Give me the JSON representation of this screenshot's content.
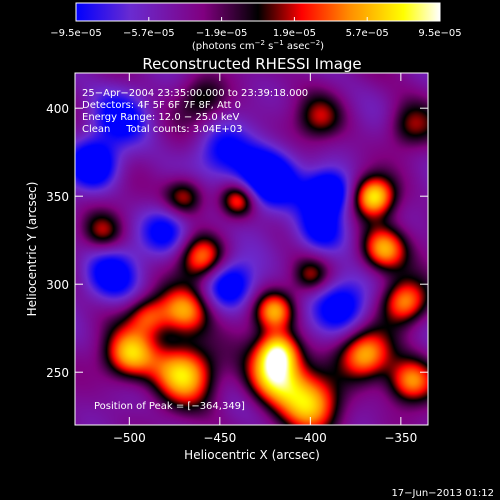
{
  "chart_data": {
    "type": "heatmap",
    "title": "Reconstructed RHESSI Image",
    "xlabel": "Heliocentric X (arcsec)",
    "ylabel": "Heliocentric Y (arcsec)",
    "xlim": [
      -530,
      -335
    ],
    "ylim": [
      220,
      420
    ],
    "x_ticks": [
      -500,
      -450,
      -400,
      -350
    ],
    "x_tick_labels": [
      "−500",
      "−450",
      "−400",
      "−350"
    ],
    "y_ticks": [
      250,
      300,
      350,
      400
    ],
    "y_tick_labels": [
      "250",
      "300",
      "350",
      "400"
    ],
    "colorbar": {
      "range": [
        -9.5e-05,
        9.5e-05
      ],
      "tick_values": [
        -9.5e-05,
        -5.7e-05,
        -1.9e-05,
        1.9e-05,
        5.7e-05,
        9.5e-05
      ],
      "tick_labels": [
        "−9.5e−05",
        "−5.7e−05",
        "−1.9e−05",
        "1.9e−05",
        "5.7e−05",
        "9.5e−05"
      ],
      "unit_main": "(photons cm",
      "unit_sup1": "−2",
      "unit_mid": " s",
      "unit_sup2": "−1",
      "unit_mid2": " asec",
      "unit_sup3": "−2",
      "unit_end": ")",
      "colors": [
        "#0000ff",
        "#6a2bd0",
        "#800080",
        "#000000",
        "#ff0000",
        "#ff8c00",
        "#ffff00",
        "#ffffff"
      ]
    },
    "annotations": [
      "25−Apr−2004 23:35:00.000 to 23:39:18.000",
      "Detectors: 4F 5F 6F 7F 8F, Att 0",
      "Energy Range: 12.0 − 25.0 keV",
      "Clean     Total counts: 3.04E+03"
    ],
    "peak_label": "Position of Peak = [−364,349]",
    "peak": [
      -364,
      349
    ],
    "blobs": [
      {
        "x": -425,
        "y": 360,
        "v": -1.0,
        "s": 12
      },
      {
        "x": -520,
        "y": 368,
        "v": -0.8,
        "s": 10
      },
      {
        "x": -390,
        "y": 352,
        "v": -0.9,
        "s": 9
      },
      {
        "x": -480,
        "y": 330,
        "v": -0.6,
        "s": 10
      },
      {
        "x": -382,
        "y": 288,
        "v": -0.7,
        "s": 11
      },
      {
        "x": -445,
        "y": 300,
        "v": -0.7,
        "s": 10
      },
      {
        "x": -510,
        "y": 305,
        "v": -0.6,
        "s": 11
      },
      {
        "x": -505,
        "y": 395,
        "v": -0.5,
        "s": 12
      },
      {
        "x": -395,
        "y": 330,
        "v": -0.6,
        "s": 10
      },
      {
        "x": -450,
        "y": 375,
        "v": -0.5,
        "s": 11
      },
      {
        "x": -440,
        "y": 348,
        "v": 0.75,
        "s": 7
      },
      {
        "x": -470,
        "y": 350,
        "v": 0.65,
        "s": 8
      },
      {
        "x": -460,
        "y": 315,
        "v": 0.75,
        "s": 9
      },
      {
        "x": -470,
        "y": 285,
        "v": 0.85,
        "s": 10
      },
      {
        "x": -500,
        "y": 260,
        "v": 0.9,
        "s": 10
      },
      {
        "x": -470,
        "y": 250,
        "v": 0.95,
        "s": 12
      },
      {
        "x": -420,
        "y": 248,
        "v": 1.0,
        "s": 11
      },
      {
        "x": -420,
        "y": 285,
        "v": 0.8,
        "s": 8
      },
      {
        "x": -418,
        "y": 262,
        "v": 0.9,
        "s": 8
      },
      {
        "x": -365,
        "y": 350,
        "v": 1.0,
        "s": 8
      },
      {
        "x": -360,
        "y": 320,
        "v": 0.9,
        "s": 9
      },
      {
        "x": -348,
        "y": 290,
        "v": 0.85,
        "s": 9
      },
      {
        "x": -370,
        "y": 260,
        "v": 0.9,
        "s": 10
      },
      {
        "x": -345,
        "y": 245,
        "v": 0.8,
        "s": 9
      },
      {
        "x": -400,
        "y": 232,
        "v": 0.85,
        "s": 12
      },
      {
        "x": -515,
        "y": 330,
        "v": 0.5,
        "s": 8
      },
      {
        "x": -490,
        "y": 282,
        "v": 0.6,
        "s": 8
      },
      {
        "x": -395,
        "y": 395,
        "v": 0.45,
        "s": 9
      },
      {
        "x": -345,
        "y": 390,
        "v": 0.45,
        "s": 9
      },
      {
        "x": -460,
        "y": 405,
        "v": 0.4,
        "s": 9
      },
      {
        "x": -400,
        "y": 305,
        "v": 0.45,
        "s": 7
      }
    ]
  },
  "footer_date": "17−Jun−2013 01:12"
}
